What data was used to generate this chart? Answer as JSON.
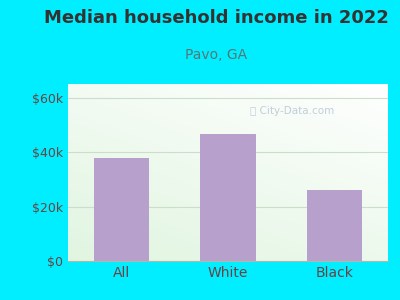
{
  "title": "Median household income in 2022",
  "subtitle": "Pavo, GA",
  "categories": [
    "All",
    "White",
    "Black"
  ],
  "values": [
    38000,
    46500,
    26000
  ],
  "bar_color": "#b8a0cc",
  "title_fontsize": 13,
  "subtitle_fontsize": 10,
  "subtitle_color": "#557777",
  "title_color": "#333333",
  "background_outer": "#00eeff",
  "yticks": [
    0,
    20000,
    40000,
    60000
  ],
  "ytick_labels": [
    "$0",
    "$20k",
    "$40k",
    "$60k"
  ],
  "ylim": [
    0,
    65000
  ],
  "watermark": "City-Data.com",
  "plot_bg_color": "#e8f5e0",
  "grid_color": "#ccddcc",
  "tick_color": "#664444"
}
